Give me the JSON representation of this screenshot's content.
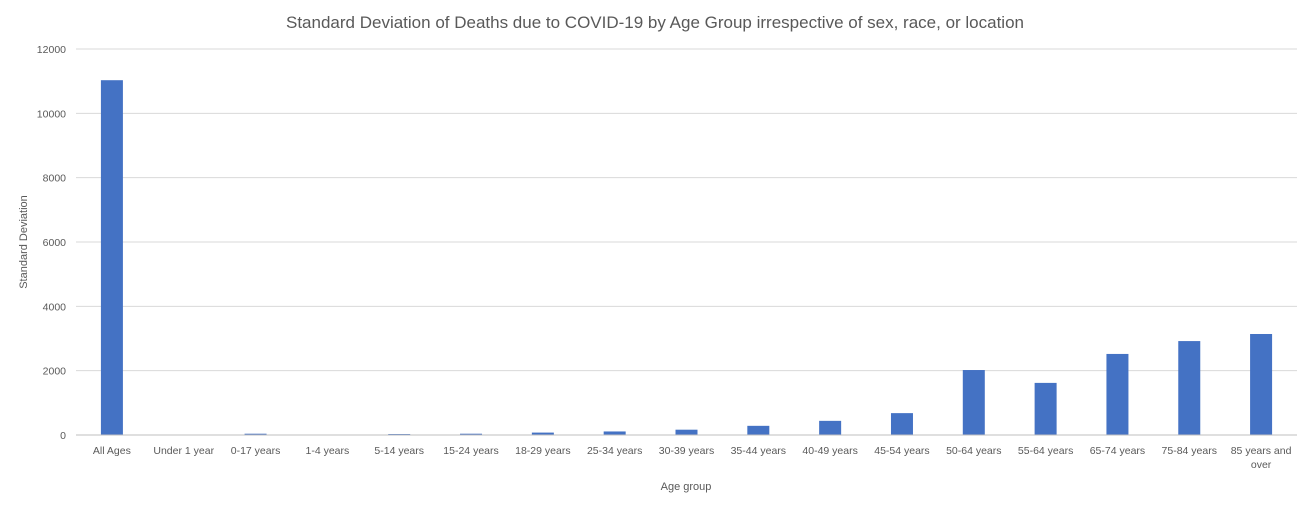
{
  "chart_data": {
    "type": "bar",
    "title": "Standard Deviation of Deaths due to COVID-19 by Age Group irrespective of sex, race, or location",
    "xlabel": "Age group",
    "ylabel": "Standard Deviation",
    "ylim": [
      0,
      12000
    ],
    "yticks": [
      "0",
      "2000",
      "4000",
      "6000",
      "8000",
      "10000",
      "12000"
    ],
    "grid": true,
    "bar_color": "#4472c4",
    "categories": [
      "All Ages",
      "Under 1 year",
      "0-17 years",
      "1-4 years",
      "5-14 years",
      "15-24 years",
      "18-29 years",
      "25-34 years",
      "30-39 years",
      "35-44 years",
      "40-49 years",
      "45-54 years",
      "50-64 years",
      "55-64 years",
      "65-74 years",
      "75-84 years",
      "85 years and over"
    ],
    "values": [
      11030,
      5,
      40,
      8,
      30,
      40,
      75,
      110,
      165,
      285,
      440,
      680,
      2020,
      1620,
      2520,
      2920,
      3140
    ]
  }
}
